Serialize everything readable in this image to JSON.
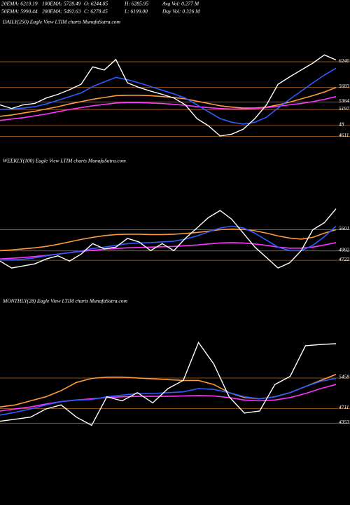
{
  "header": {
    "rows": [
      [
        "20EMA: 6219.19",
        "100EMA: 5728.49",
        "O: 6244.85",
        "H: 6285.95",
        "Avg Vol: 0.277  M"
      ],
      [
        "50EMA: 5990.44",
        "200EMA: 5492.63",
        "C: 6278.45",
        "L: 6199.00",
        "Day Vol: 0.326  M"
      ]
    ]
  },
  "chart_data": [
    {
      "type": "line",
      "title": "DAILY(250) Eagle  View  LTIM charts MunafaSutra.com",
      "ylim": [
        4450,
        6670
      ],
      "yticks": [
        6240,
        5683,
        5364,
        5197,
        {
          "value": 4850,
          "label": "48"
        },
        4611
      ],
      "series": [
        {
          "color": "#ff9a3c",
          "values": [
            5050,
            5080,
            5120,
            5160,
            5210,
            5260,
            5320,
            5370,
            5420,
            5460,
            5500,
            5510,
            5510,
            5500,
            5480,
            5460,
            5430,
            5380,
            5330,
            5280,
            5250,
            5230,
            5230,
            5250,
            5300,
            5360,
            5430,
            5500,
            5580,
            5680
          ]
        },
        {
          "color": "#ff33ff",
          "values": [
            4960,
            4990,
            5020,
            5060,
            5100,
            5150,
            5200,
            5240,
            5280,
            5310,
            5340,
            5350,
            5350,
            5340,
            5330,
            5310,
            5290,
            5260,
            5240,
            5220,
            5210,
            5210,
            5220,
            5240,
            5270,
            5300,
            5330,
            5370,
            5420,
            5480
          ]
        },
        {
          "color": "#2f5cff",
          "values": [
            5200,
            5210,
            5230,
            5260,
            5320,
            5400,
            5480,
            5560,
            5700,
            5800,
            5900,
            5850,
            5780,
            5700,
            5620,
            5540,
            5450,
            5300,
            5150,
            5000,
            4920,
            4880,
            4920,
            5030,
            5230,
            5420,
            5600,
            5780,
            5950,
            6100
          ]
        },
        {
          "color": "#ffffff",
          "values": [
            5300,
            5220,
            5300,
            5330,
            5450,
            5530,
            5630,
            5750,
            6130,
            6060,
            6290,
            5780,
            5680,
            5600,
            5530,
            5450,
            5300,
            5000,
            4840,
            4620,
            4660,
            4770,
            5000,
            5300,
            5750,
            5910,
            6060,
            6210,
            6390,
            6280
          ]
        }
      ]
    },
    {
      "type": "line",
      "title": "WEEKLY(100) Eagle  View  LTIM charts MunafaSutra.com",
      "ylim": [
        4040,
        7360
      ],
      "yticks": [
        5601,
        4992,
        4722
      ],
      "series": [
        {
          "color": "#ff9a3c",
          "values": [
            5000,
            5020,
            5050,
            5080,
            5120,
            5180,
            5250,
            5320,
            5380,
            5430,
            5460,
            5470,
            5470,
            5460,
            5460,
            5470,
            5490,
            5520,
            5560,
            5600,
            5620,
            5610,
            5570,
            5500,
            5420,
            5360,
            5330,
            5380,
            5500,
            5600
          ]
        },
        {
          "color": "#ff33ff",
          "values": [
            4760,
            4780,
            4800,
            4830,
            4860,
            4900,
            4940,
            4980,
            5010,
            5040,
            5060,
            5080,
            5090,
            5100,
            5110,
            5120,
            5140,
            5160,
            5190,
            5220,
            5230,
            5220,
            5190,
            5150,
            5100,
            5070,
            5070,
            5100,
            5160,
            5230
          ]
        },
        {
          "color": "#2f5cff",
          "values": [
            4750,
            4740,
            4750,
            4790,
            4850,
            4900,
            4940,
            4990,
            5060,
            5100,
            5150,
            5200,
            5220,
            5230,
            5250,
            5270,
            5330,
            5420,
            5540,
            5650,
            5700,
            5650,
            5500,
            5300,
            5100,
            5000,
            5000,
            5150,
            5400,
            5700
          ]
        },
        {
          "color": "#ffffff",
          "values": [
            4700,
            4500,
            4560,
            4620,
            4760,
            4850,
            4700,
            4900,
            5200,
            5050,
            5100,
            5350,
            5250,
            5000,
            5200,
            5000,
            5350,
            5650,
            5950,
            6150,
            5900,
            5500,
            5100,
            4800,
            4500,
            4650,
            5000,
            5600,
            5800,
            6200
          ]
        }
      ]
    },
    {
      "type": "line",
      "title": "MONTHLY(28) Eagle  View  LTIM charts MunafaSutra.com",
      "ylim": [
        3980,
        7160
      ],
      "yticks": [
        5458,
        4711,
        4353
      ],
      "series": [
        {
          "color": "#ff9a3c",
          "values": [
            4750,
            4800,
            4900,
            5000,
            5150,
            5350,
            5450,
            5480,
            5480,
            5460,
            5440,
            5420,
            5400,
            5400,
            5300,
            5100,
            4980,
            4950,
            5000,
            5100,
            5250,
            5400,
            5550
          ]
        },
        {
          "color": "#ff33ff",
          "values": [
            4650,
            4700,
            4750,
            4820,
            4880,
            4920,
            4950,
            4980,
            5000,
            5010,
            5010,
            5010,
            5020,
            5030,
            5020,
            4980,
            4920,
            4900,
            4920,
            4980,
            5080,
            5200,
            5300
          ]
        },
        {
          "color": "#2f5cff",
          "values": [
            4550,
            4620,
            4700,
            4800,
            4880,
            4920,
            4930,
            5000,
            5040,
            5080,
            5080,
            5100,
            5120,
            5200,
            5180,
            5100,
            5000,
            4950,
            5000,
            5100,
            5250,
            5380,
            5450
          ]
        },
        {
          "color": "#ffffff",
          "values": [
            4400,
            4450,
            4500,
            4700,
            4800,
            4500,
            4300,
            5000,
            4900,
            5100,
            4850,
            5200,
            5400,
            6330,
            5800,
            5000,
            4600,
            4650,
            5300,
            5500,
            6250,
            6280,
            6300
          ]
        }
      ]
    }
  ]
}
